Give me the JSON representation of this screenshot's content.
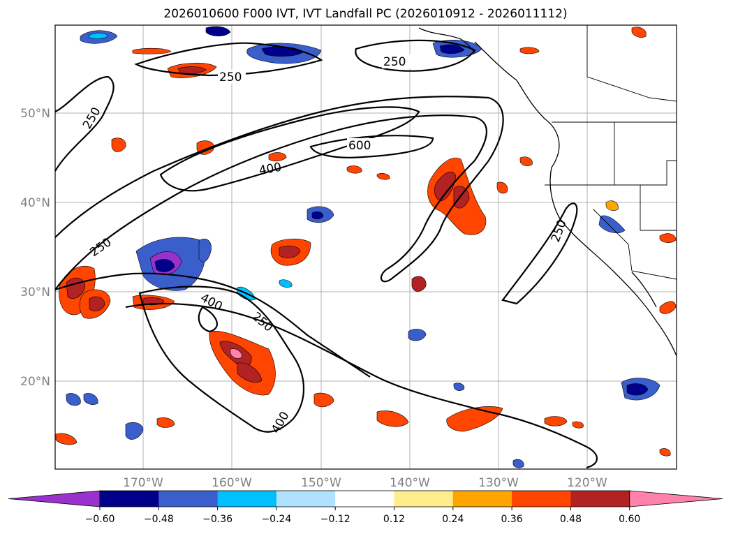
{
  "title": "2026010600 F000 IVT, IVT Landfall PC (2026010912 - 2026011112)",
  "lat_labels": [
    "50°N",
    "40°N",
    "30°N",
    "20°N"
  ],
  "lon_labels": [
    "170°W",
    "160°W",
    "150°W",
    "140°W",
    "130°W",
    "120°W"
  ],
  "ivt_contour_labels": [
    "250",
    "250",
    "250",
    "600",
    "400",
    "250",
    "250",
    "400",
    "250",
    "400"
  ],
  "colorbar": {
    "tick_labels": [
      "−0.60",
      "−0.48",
      "−0.36",
      "−0.24",
      "−0.12",
      "0.12",
      "0.24",
      "0.36",
      "0.48",
      "0.60"
    ],
    "colors": [
      "#9932cc",
      "#00008b",
      "#3a5fcd",
      "#00bfff",
      "#b0e2ff",
      "#ffffff",
      "#ffec8b",
      "#ffa500",
      "#ff4500",
      "#b22222",
      "#ff82ab"
    ]
  }
}
